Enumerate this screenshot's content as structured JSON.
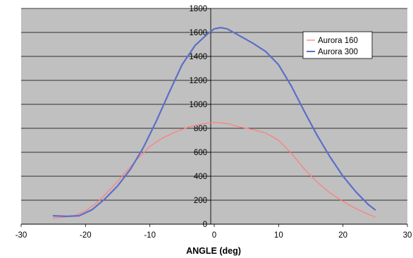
{
  "chart_data": {
    "type": "line",
    "xlabel": "ANGLE (deg)",
    "ylabel": "",
    "title": "",
    "xlim": [
      -30,
      30
    ],
    "ylim": [
      0,
      1800
    ],
    "x_ticks": [
      "-30",
      "-20",
      "-10",
      "0",
      "10",
      "20",
      "30"
    ],
    "y_ticks": [
      "0",
      "200",
      "400",
      "600",
      "800",
      "1000",
      "1200",
      "1400",
      "1600",
      "1800"
    ],
    "grid": "horizontal",
    "plot_background": "#c0c0c0",
    "legend_position": "top-right",
    "series": [
      {
        "name": "Aurora 160",
        "color": "#ff7f7f",
        "x": [
          -25,
          -22,
          -20,
          -18,
          -16,
          -14,
          -12,
          -10,
          -8,
          -6,
          -4,
          -2,
          0,
          2,
          4,
          6,
          8,
          10,
          12,
          14,
          16,
          18,
          20,
          22,
          24,
          25
        ],
        "y": [
          50,
          65,
          110,
          190,
          300,
          420,
          540,
          650,
          720,
          770,
          810,
          835,
          850,
          840,
          810,
          790,
          760,
          700,
          590,
          460,
          350,
          260,
          190,
          130,
          80,
          60
        ]
      },
      {
        "name": "Aurora 300",
        "color": "#5a6fc8",
        "x": [
          -25,
          -23,
          -21,
          -19,
          -17,
          -15,
          -13,
          -11,
          -9,
          -7,
          -5,
          -3,
          -1,
          0,
          1,
          2,
          4,
          6,
          8,
          10,
          12,
          14,
          16,
          18,
          20,
          22,
          24,
          25
        ],
        "y": [
          70,
          65,
          70,
          120,
          210,
          320,
          460,
          640,
          860,
          1100,
          1330,
          1490,
          1590,
          1630,
          1640,
          1630,
          1570,
          1510,
          1440,
          1330,
          1150,
          940,
          740,
          560,
          400,
          270,
          160,
          120
        ]
      }
    ]
  }
}
